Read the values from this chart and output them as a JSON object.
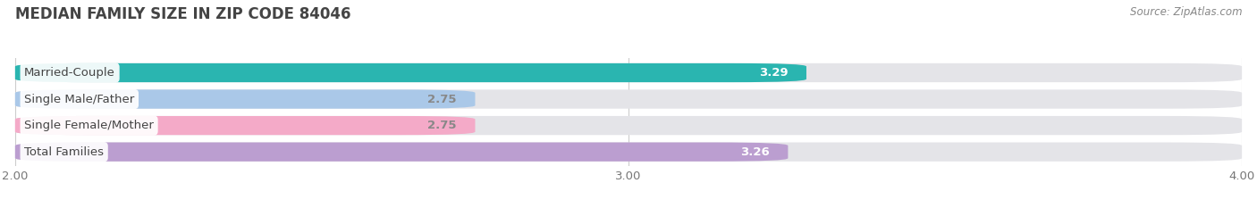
{
  "title": "MEDIAN FAMILY SIZE IN ZIP CODE 84046",
  "source": "Source: ZipAtlas.com",
  "categories": [
    "Married-Couple",
    "Single Male/Father",
    "Single Female/Mother",
    "Total Families"
  ],
  "values": [
    3.29,
    2.75,
    2.75,
    3.26
  ],
  "bar_colors": [
    "#2ab5b0",
    "#aac8e8",
    "#f4aac8",
    "#bb9ed0"
  ],
  "bar_bg_color": "#e4e4e8",
  "value_label_colors": [
    "#ffffff",
    "#888888",
    "#888888",
    "#ffffff"
  ],
  "xlim": [
    2.0,
    4.0
  ],
  "xticks": [
    2.0,
    3.0,
    4.0
  ],
  "xtick_labels": [
    "2.00",
    "3.00",
    "4.00"
  ],
  "background_color": "#ffffff",
  "title_fontsize": 12,
  "label_fontsize": 9.5,
  "value_fontsize": 9.5,
  "source_fontsize": 8.5
}
